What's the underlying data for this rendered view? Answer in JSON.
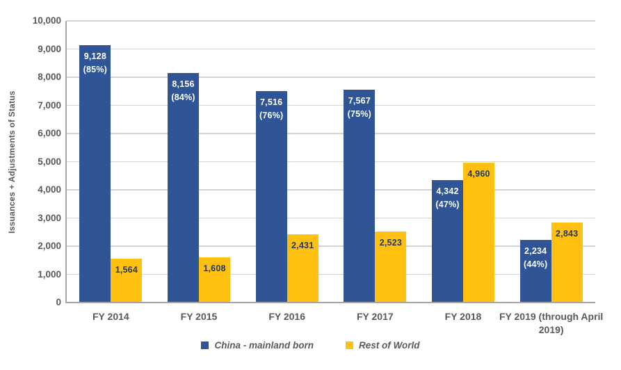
{
  "chart_data": {
    "type": "bar",
    "title": "",
    "ylabel": "Issuances  + Adjustments of Status",
    "xlabel": "",
    "categories": [
      "FY 2014",
      "FY 2015",
      "FY 2016",
      "FY 2017",
      "FY 2018",
      "FY 2019 (through April 2019)"
    ],
    "ylim": [
      0,
      10000
    ],
    "ytick_step": 1000,
    "ytick_labels": [
      "0",
      "1,000",
      "2,000",
      "3,000",
      "4,000",
      "5,000",
      "6,000",
      "7,000",
      "8,000",
      "9,000",
      "10,000"
    ],
    "grid": true,
    "legend_position": "bottom",
    "series": [
      {
        "name": "China - mainland born",
        "color": "#2F5597",
        "label_color": "#FFFFFF",
        "values": [
          9128,
          8156,
          7516,
          7567,
          4342,
          2234
        ],
        "bar_labels": [
          [
            "9,128",
            "(85%)"
          ],
          [
            "8,156",
            "(84%)"
          ],
          [
            "7,516",
            "(76%)"
          ],
          [
            "7,567",
            "(75%)"
          ],
          [
            "4,342",
            "(47%)"
          ],
          [
            "2,234",
            "(44%)"
          ]
        ]
      },
      {
        "name": "Rest of World",
        "color": "#FFC010",
        "label_color": "#1F3864",
        "values": [
          1564,
          1608,
          2431,
          2523,
          4960,
          2843
        ],
        "bar_labels": [
          [
            "1,564"
          ],
          [
            "1,608"
          ],
          [
            "2,431"
          ],
          [
            "2,523"
          ],
          [
            "4,960"
          ],
          [
            "2,843"
          ]
        ]
      }
    ]
  },
  "colors": {
    "gridline": "#d3d3d3",
    "axis": "#a6a6a6",
    "tick_text": "#595959"
  }
}
